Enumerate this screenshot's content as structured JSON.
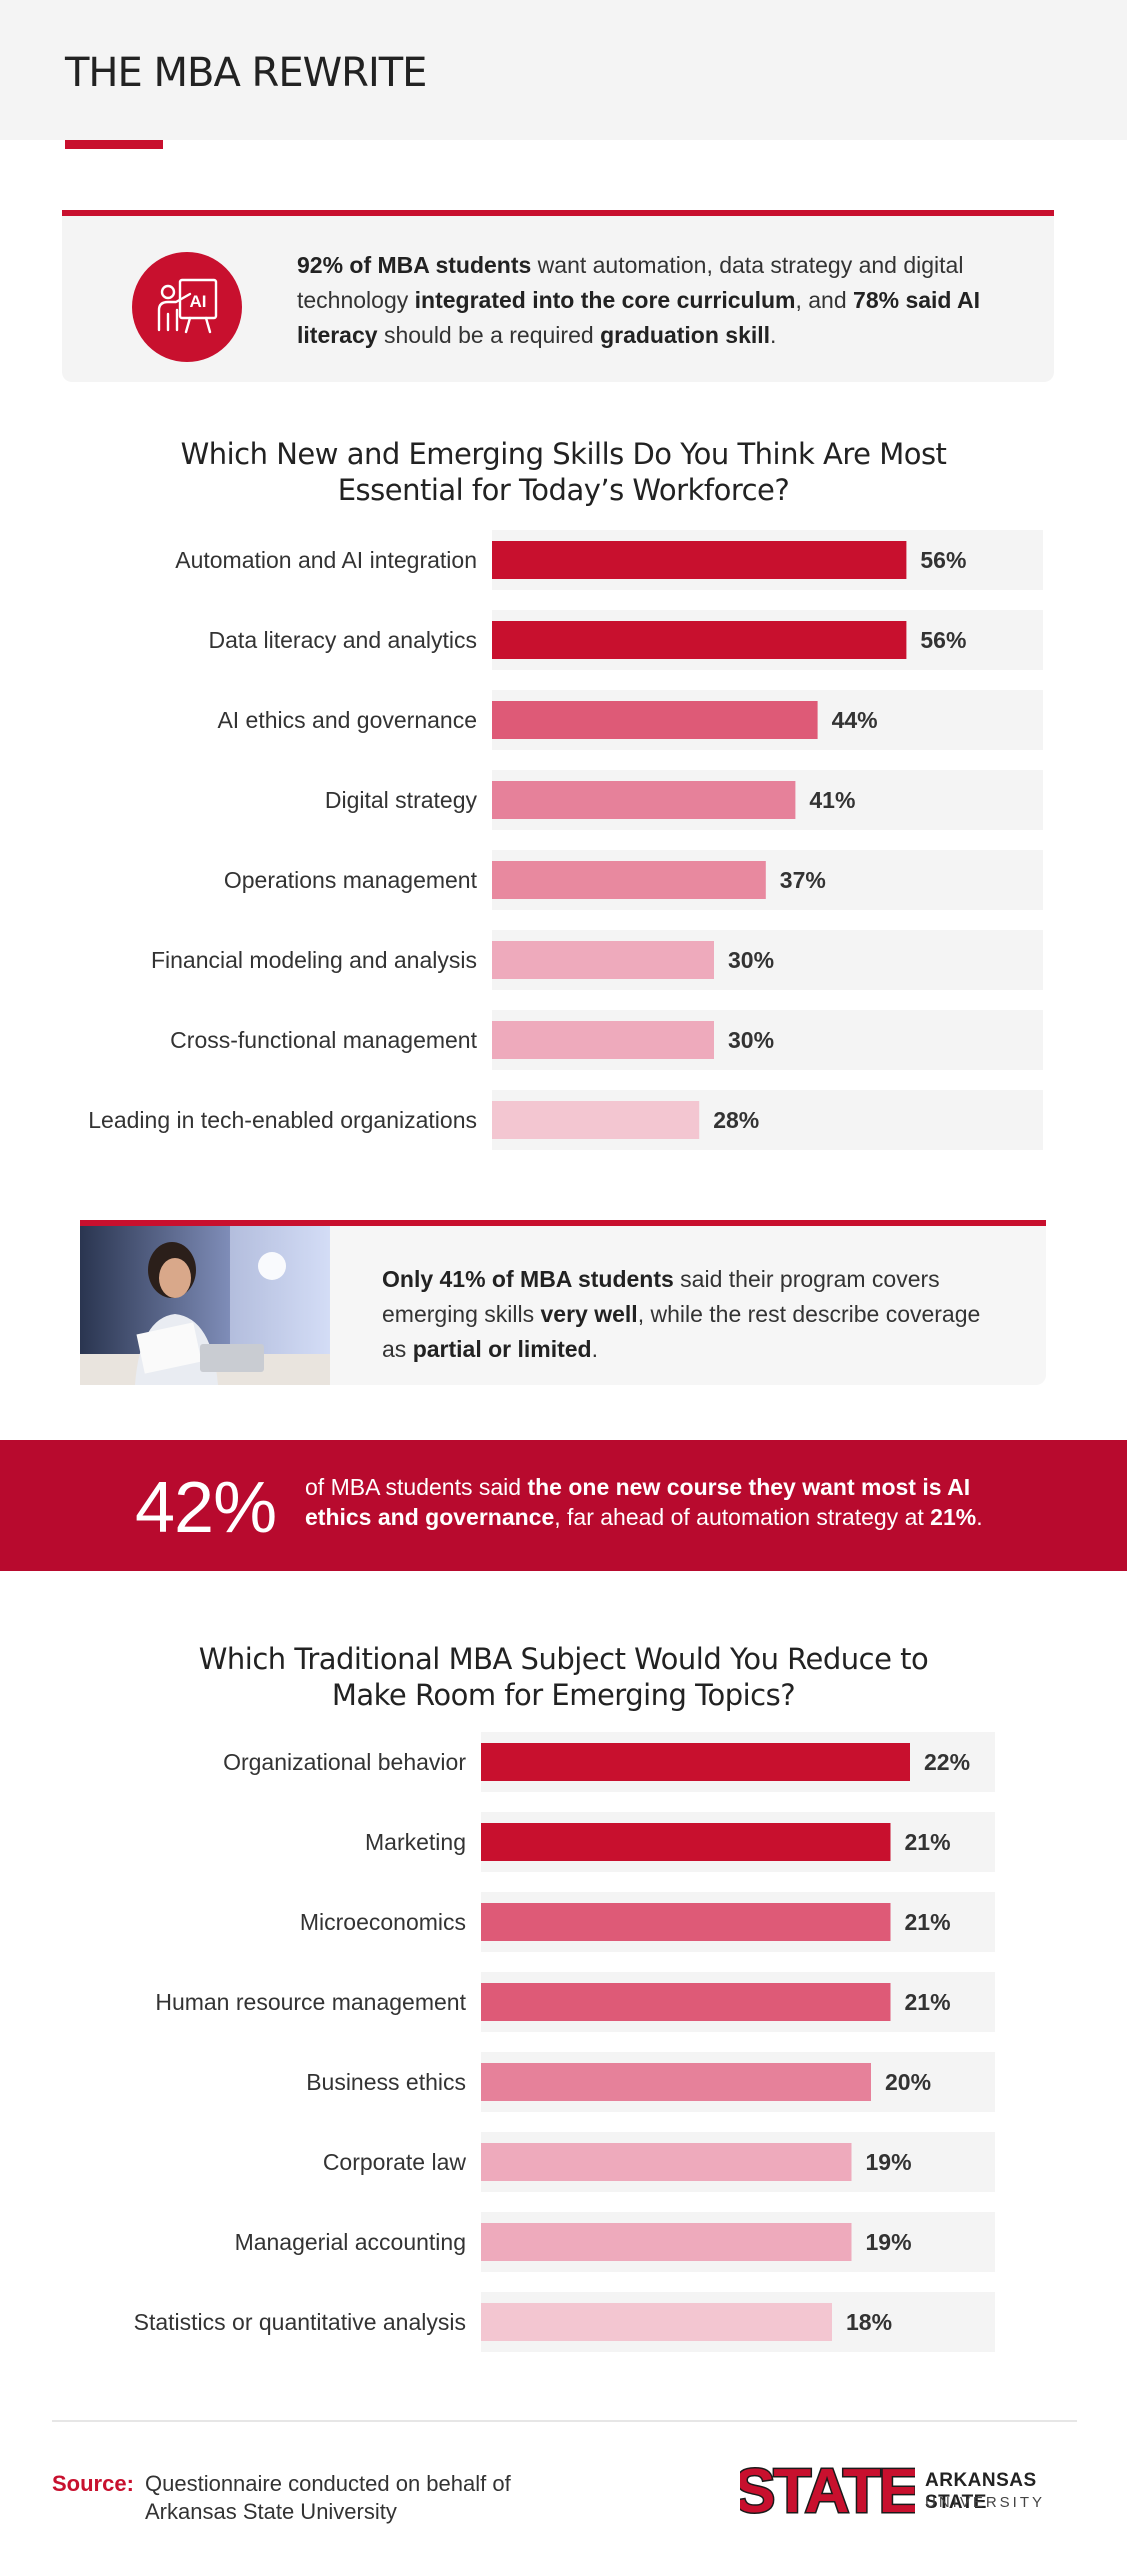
{
  "header": {
    "title": "THE MBA REWRITE"
  },
  "callout1": {
    "icon": "ai-presentation-icon",
    "p1_bold": "92% of MBA students",
    "p1": " want automation, data strategy and digital technology ",
    "p2_bold": "integrated into the core curriculum",
    "p2": ", and ",
    "p3_bold": "78% said AI literacy",
    "p3": " should be a required ",
    "p4_bold": "graduation skill",
    "p4": "."
  },
  "chart_data": [
    {
      "type": "bar",
      "orientation": "horizontal",
      "title_line1": "Which New and Emerging Skills Do You Think Are Most",
      "title_line2": "Essential for Today’s Workforce?",
      "categories": [
        "Automation and AI integration",
        "Data literacy and analytics",
        "AI ethics and governance",
        "Digital strategy",
        "Operations management",
        "Financial modeling and analysis",
        "Cross-functional management",
        "Leading in tech-enabled organizations"
      ],
      "values": [
        56,
        56,
        44,
        41,
        37,
        30,
        30,
        28
      ],
      "value_labels": [
        "56%",
        "56%",
        "44%",
        "41%",
        "37%",
        "30%",
        "30%",
        "28%"
      ],
      "colors": [
        "#c8102e",
        "#c8102e",
        "#de5a77",
        "#e6819a",
        "#e8899f",
        "#eeaabc",
        "#eeaabc",
        "#f3c6d1"
      ]
    },
    {
      "type": "bar",
      "orientation": "horizontal",
      "title_line1": "Which Traditional MBA Subject Would You Reduce to",
      "title_line2": "Make Room for Emerging Topics?",
      "categories": [
        "Organizational behavior",
        "Marketing",
        "Microeconomics",
        "Human resource management",
        "Business ethics",
        "Corporate law",
        "Managerial accounting",
        "Statistics or quantitative analysis"
      ],
      "values": [
        22,
        21,
        21,
        21,
        20,
        19,
        19,
        18
      ],
      "value_labels": [
        "22%",
        "21%",
        "21%",
        "21%",
        "20%",
        "19%",
        "19%",
        "18%"
      ],
      "colors": [
        "#c8102e",
        "#c8102e",
        "#de5a77",
        "#de5a77",
        "#e6819a",
        "#eeaabc",
        "#eeaabc",
        "#f3c6d1"
      ]
    }
  ],
  "callout2": {
    "p1_bold": "Only 41% of MBA students",
    "p1": " said their program covers emerging skills ",
    "p2_bold": "very well",
    "p2": ", while the rest describe coverage as ",
    "p3_bold": "partial or limited",
    "p3": "."
  },
  "band": {
    "big": "42%",
    "t1": "of MBA students said ",
    "t2_bold": "the one new course they want most is AI ethics and governance",
    "t3": ", far ahead of automation strategy at ",
    "t4_bold": "21%",
    "t5": "."
  },
  "footer": {
    "source_key": "Source:",
    "source_text": "Questionnaire conducted on behalf of Arkansas State University",
    "logo_word": "STATE",
    "logo_name": "ARKANSAS STATE",
    "logo_sub": "UNIVERSITY"
  }
}
